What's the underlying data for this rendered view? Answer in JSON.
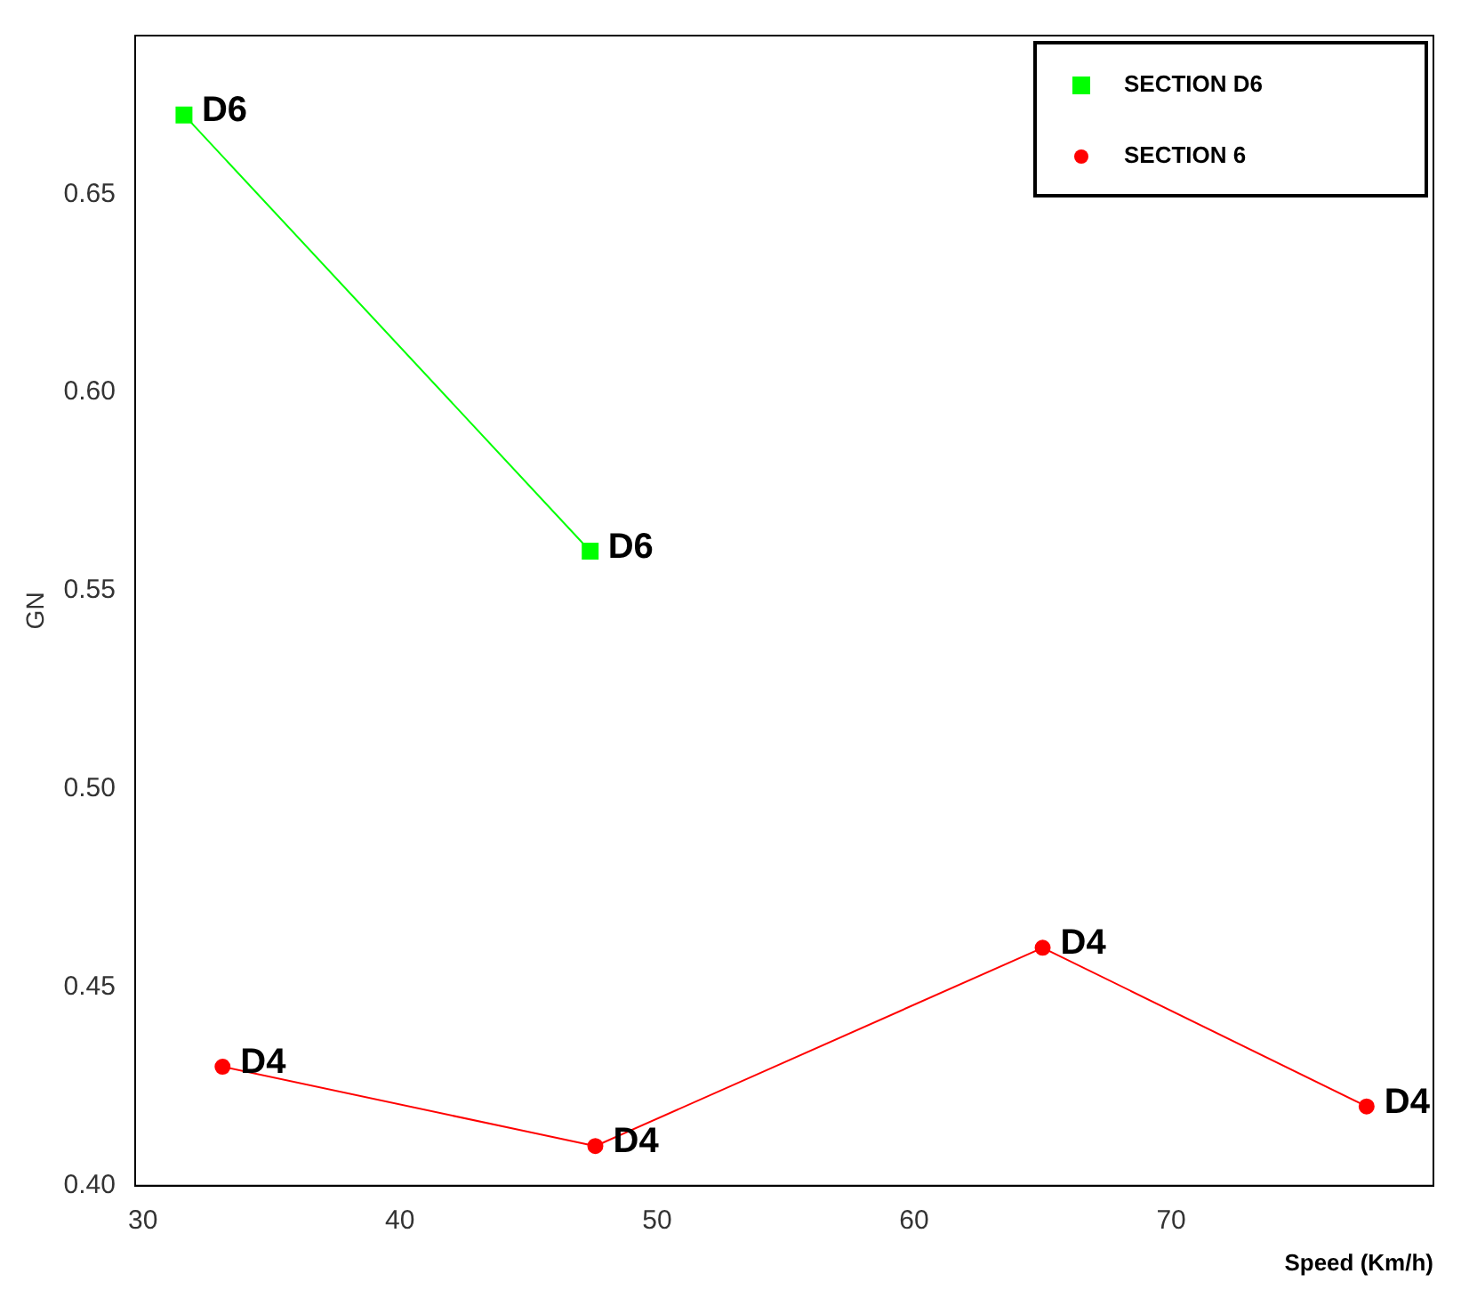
{
  "chart_data": {
    "type": "line",
    "xlabel": "Speed (Km/h)",
    "ylabel": "GN",
    "series": [
      {
        "name": "SECTION D6",
        "color": "#00ff00",
        "marker": "square",
        "x": [
          31.6,
          47.4
        ],
        "values": [
          0.67,
          0.56
        ]
      },
      {
        "name": "SECTION 6",
        "color": "#ff0000",
        "marker": "circle",
        "x": [
          33.1,
          47.6,
          65.0,
          77.6
        ],
        "values": [
          0.43,
          0.41,
          0.46,
          0.42
        ]
      }
    ],
    "annotations": [
      {
        "text": "D6",
        "x": 31.6,
        "y": 0.67
      },
      {
        "text": "D6",
        "x": 47.4,
        "y": 0.56
      },
      {
        "text": "D4",
        "x": 33.1,
        "y": 0.43
      },
      {
        "text": "D4",
        "x": 47.6,
        "y": 0.41
      },
      {
        "text": "D4",
        "x": 65.0,
        "y": 0.46
      },
      {
        "text": "D4",
        "x": 77.6,
        "y": 0.42
      }
    ],
    "xlim": [
      29.7,
      80.2
    ],
    "xticks": [
      30,
      40,
      50,
      60,
      70
    ],
    "ylim": [
      0.4,
      0.69
    ],
    "yticks": [
      {
        "value": 0.4,
        "label": "0.40"
      },
      {
        "value": 0.45,
        "label": "0.45"
      },
      {
        "value": 0.5,
        "label": "0.50"
      },
      {
        "value": 0.55,
        "label": "0.55"
      },
      {
        "value": 0.6,
        "label": "0.60"
      },
      {
        "value": 0.65,
        "label": "0.65"
      }
    ],
    "grid": false,
    "legend": "top right"
  }
}
